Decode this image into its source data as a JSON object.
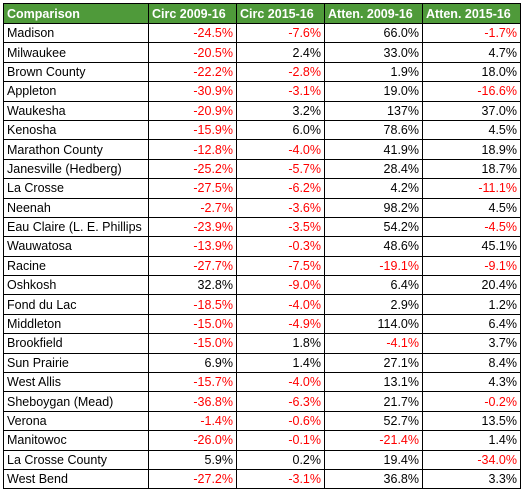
{
  "table": {
    "headers": [
      "Comparison",
      "Circ 2009-16",
      "Circ 2015-16",
      "Atten. 2009-16",
      "Atten. 2015-16"
    ],
    "rows": [
      [
        "Madison",
        "-24.5%",
        "-7.6%",
        "66.0%",
        "-1.7%"
      ],
      [
        "Milwaukee",
        "-20.5%",
        "2.4%",
        "33.0%",
        "4.7%"
      ],
      [
        "Brown County",
        "-22.2%",
        "-2.8%",
        "1.9%",
        "18.0%"
      ],
      [
        "Appleton",
        "-30.9%",
        "-3.1%",
        "19.0%",
        "-16.6%"
      ],
      [
        "Waukesha",
        "-20.9%",
        "3.2%",
        "137%",
        "37.0%"
      ],
      [
        "Kenosha",
        "-15.9%",
        "6.0%",
        "78.6%",
        "4.5%"
      ],
      [
        "Marathon County",
        "-12.8%",
        "-4.0%",
        "41.9%",
        "18.9%"
      ],
      [
        "Janesville (Hedberg)",
        "-25.2%",
        "-5.7%",
        "28.4%",
        "18.7%"
      ],
      [
        "La Crosse",
        "-27.5%",
        "-6.2%",
        "4.2%",
        "-11.1%"
      ],
      [
        "Neenah",
        "-2.7%",
        "-3.6%",
        "98.2%",
        "4.5%"
      ],
      [
        "Eau Claire (L. E. Phillips",
        "-23.9%",
        "-3.5%",
        "54.2%",
        "-4.5%"
      ],
      [
        "Wauwatosa",
        "-13.9%",
        "-0.3%",
        "48.6%",
        "45.1%"
      ],
      [
        "Racine",
        "-27.7%",
        "-7.5%",
        "-19.1%",
        "-9.1%"
      ],
      [
        "Oshkosh",
        "32.8%",
        "-9.0%",
        "6.4%",
        "20.4%"
      ],
      [
        "Fond du Lac",
        "-18.5%",
        "-4.0%",
        "2.9%",
        "1.2%"
      ],
      [
        "Middleton",
        "-15.0%",
        "-4.9%",
        "114.0%",
        "6.4%"
      ],
      [
        "Brookfield",
        "-15.0%",
        "1.8%",
        "-4.1%",
        "3.7%"
      ],
      [
        "Sun Prairie",
        "6.9%",
        "1.4%",
        "27.1%",
        "8.4%"
      ],
      [
        "West Allis",
        "-15.7%",
        "-4.0%",
        "13.1%",
        "4.3%"
      ],
      [
        "Sheboygan (Mead)",
        "-36.8%",
        "-6.3%",
        "21.7%",
        "-0.2%"
      ],
      [
        "Verona",
        "-1.4%",
        "-0.6%",
        "52.7%",
        "13.5%"
      ],
      [
        "Manitowoc",
        "-26.0%",
        "-0.1%",
        "-21.4%",
        "1.4%"
      ],
      [
        "La Crosse County",
        "5.9%",
        "0.2%",
        "19.4%",
        "-34.0%"
      ],
      [
        "West Bend",
        "-27.2%",
        "-3.1%",
        "36.8%",
        "3.3%"
      ]
    ]
  },
  "colors": {
    "header_bg": "#4f9a3a",
    "header_text": "#ffffff",
    "negative": "#ff0000",
    "positive": "#000000"
  }
}
